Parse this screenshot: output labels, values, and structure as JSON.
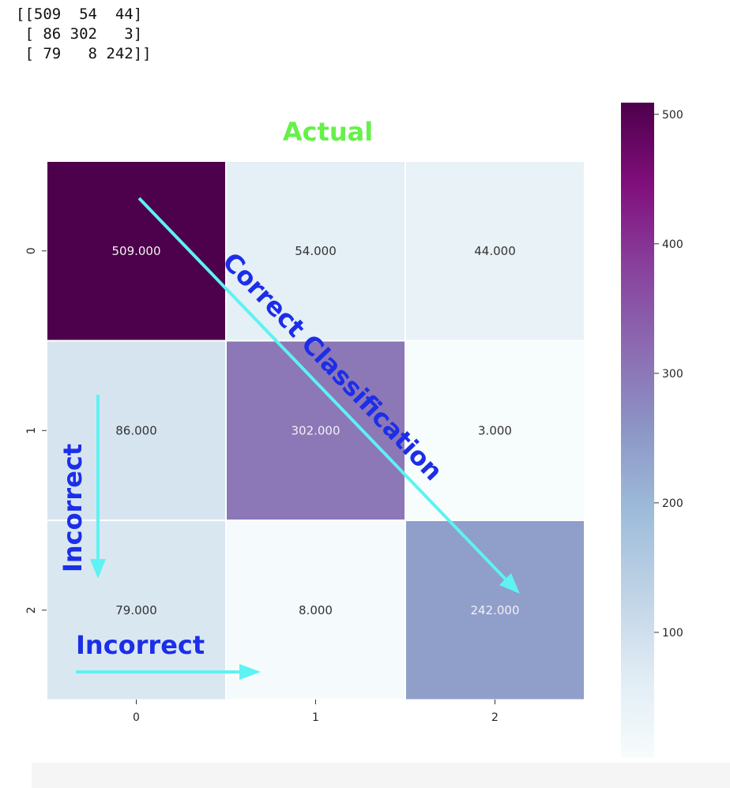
{
  "printout": {
    "lines": [
      "[[509  54  44]",
      " [ 86 302   3]",
      " [ 79   8 242]]"
    ]
  },
  "chart_data": {
    "type": "heatmap",
    "title": "Actual",
    "x_categories": [
      "0",
      "1",
      "2"
    ],
    "y_categories": [
      "0",
      "1",
      "2"
    ],
    "values": [
      [
        509,
        54,
        44
      ],
      [
        86,
        302,
        3
      ],
      [
        79,
        8,
        242
      ]
    ],
    "cell_labels": [
      [
        "509.000",
        "54.000",
        "44.000"
      ],
      [
        "86.000",
        "302.000",
        "3.000"
      ],
      [
        "79.000",
        "8.000",
        "242.000"
      ]
    ],
    "colorbar": {
      "min": 3,
      "max": 509,
      "ticks": [
        "100",
        "200",
        "300",
        "400",
        "500"
      ],
      "colormap": "BuPu",
      "stops": [
        "#f7fcfd",
        "#e0ecf4",
        "#bfd3e6",
        "#9ebcda",
        "#8c96c6",
        "#8c6bb1",
        "#88419d",
        "#810f7c",
        "#4d004b"
      ]
    },
    "annotations": {
      "diagonal_label": "Correct Classification",
      "vertical_label": "Incorrect",
      "horizontal_label": "Incorrect"
    },
    "colors": {
      "arrow": "#5ef2f2",
      "annotation_text": "#1c2ee8",
      "title": "#66f04a"
    }
  }
}
